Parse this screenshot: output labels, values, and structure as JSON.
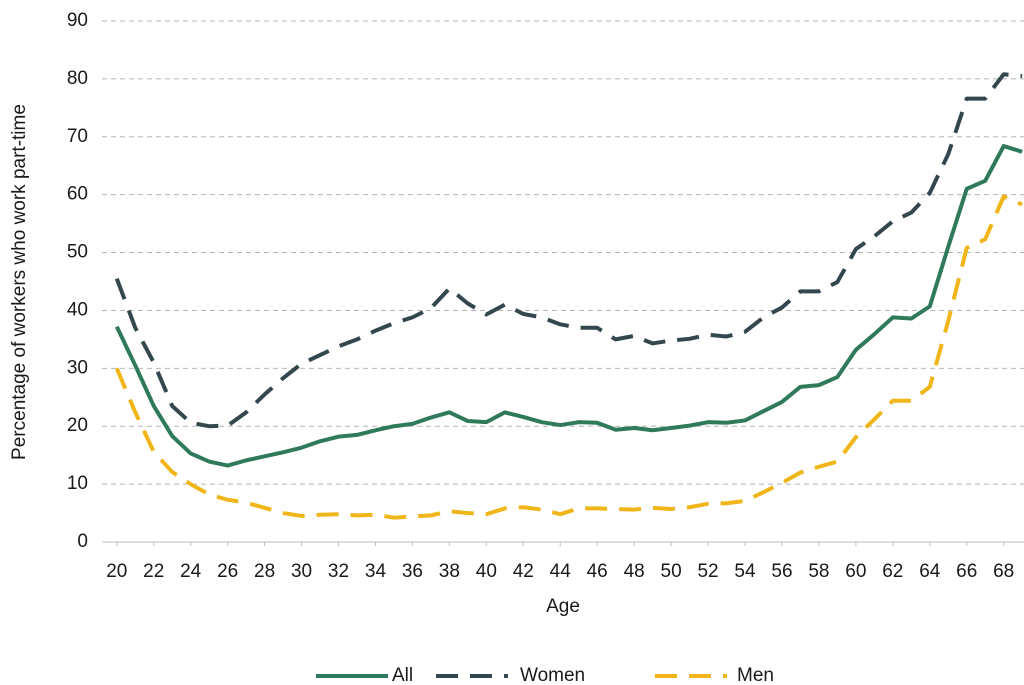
{
  "chart_data": {
    "type": "line",
    "x_label": "Age",
    "y_label": "Percentage of workers who work part-time",
    "x": [
      20,
      21,
      22,
      23,
      24,
      25,
      26,
      27,
      28,
      29,
      30,
      31,
      32,
      33,
      34,
      35,
      36,
      37,
      38,
      39,
      40,
      41,
      42,
      43,
      44,
      45,
      46,
      47,
      48,
      49,
      50,
      51,
      52,
      53,
      54,
      55,
      56,
      57,
      58,
      59,
      60,
      61,
      62,
      63,
      64,
      65,
      66,
      67,
      68,
      69
    ],
    "xlim": [
      19.2,
      69.1
    ],
    "xticks": [
      20,
      22,
      24,
      26,
      28,
      30,
      32,
      34,
      36,
      38,
      40,
      42,
      44,
      46,
      48,
      50,
      52,
      54,
      56,
      58,
      60,
      62,
      64,
      66,
      68
    ],
    "ylim": [
      0,
      90
    ],
    "yticks": [
      0,
      10,
      20,
      30,
      40,
      50,
      60,
      70,
      80,
      90
    ],
    "grid": true,
    "legend": "bottom",
    "series": [
      {
        "name": "All",
        "color": "#2e7a5a",
        "line_style": "solid",
        "values": [
          37.2,
          30.5,
          23.5,
          18.3,
          15.3,
          13.9,
          13.2,
          14.1,
          14.8,
          15.5,
          16.3,
          17.4,
          18.2,
          18.5,
          19.3,
          20.0,
          20.4,
          21.5,
          22.4,
          20.9,
          20.7,
          22.4,
          21.6,
          20.7,
          20.2,
          20.7,
          20.6,
          19.4,
          19.7,
          19.3,
          19.7,
          20.1,
          20.7,
          20.6,
          21.0,
          22.6,
          24.2,
          26.8,
          27.1,
          28.5,
          33.2,
          35.9,
          38.8,
          38.6,
          40.7,
          51.0,
          61.0,
          62.4,
          68.4,
          67.4
        ]
      },
      {
        "name": "Women",
        "color": "#34474f",
        "line_style": "dashed",
        "values": [
          45.5,
          37.0,
          31.0,
          23.5,
          20.6,
          20.0,
          20.1,
          22.4,
          25.5,
          28.3,
          30.8,
          32.3,
          33.8,
          35.0,
          36.5,
          37.8,
          38.8,
          40.4,
          43.8,
          41.2,
          39.3,
          41.0,
          39.4,
          38.8,
          37.6,
          37.0,
          37.0,
          35.0,
          35.6,
          34.3,
          34.8,
          35.1,
          35.8,
          35.5,
          36.3,
          38.8,
          40.5,
          43.3,
          43.3,
          44.9,
          50.6,
          52.8,
          55.4,
          56.9,
          60.3,
          67.0,
          76.6,
          76.6,
          80.8,
          80.5
        ]
      },
      {
        "name": "Men",
        "color": "#f0b619",
        "line_style": "dashed",
        "values": [
          30.0,
          22.4,
          15.6,
          12.1,
          10.0,
          8.2,
          7.3,
          6.8,
          5.9,
          5.0,
          4.5,
          4.7,
          4.8,
          4.6,
          4.7,
          4.2,
          4.4,
          4.6,
          5.3,
          5.0,
          4.8,
          5.8,
          6.0,
          5.6,
          4.8,
          5.8,
          5.8,
          5.7,
          5.6,
          5.9,
          5.7,
          6.0,
          6.6,
          6.7,
          7.1,
          8.6,
          10.2,
          12.0,
          13.0,
          13.9,
          18.1,
          21.2,
          24.4,
          24.4,
          26.8,
          38.2,
          50.8,
          52.3,
          59.7,
          58.3
        ]
      }
    ]
  }
}
